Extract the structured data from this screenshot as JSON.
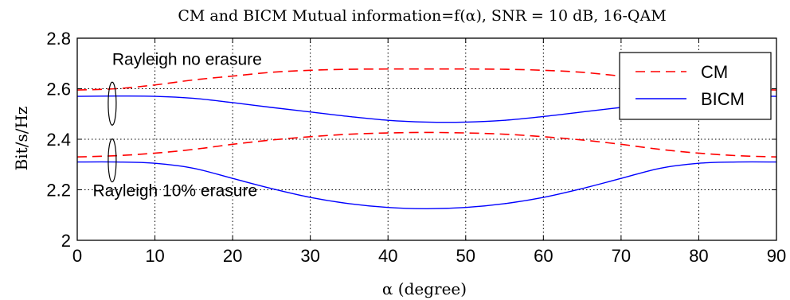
{
  "chart_data": {
    "type": "line",
    "title": "CM and BICM Mutual information=f(α), SNR = 10 dB, 16-QAM",
    "xlabel": "α (degree)",
    "ylabel": "Bit/s/Hz",
    "xlim": [
      0,
      90
    ],
    "ylim": [
      2,
      2.8
    ],
    "xticks": [
      0,
      10,
      20,
      30,
      40,
      50,
      60,
      70,
      80,
      90
    ],
    "yticks": [
      2,
      2.2,
      2.4,
      2.6,
      2.8
    ],
    "ytick_labels": [
      "2",
      "2.2",
      "2.4",
      "2.6",
      "2.8"
    ],
    "grid": true,
    "legend_position": "top-right",
    "legend": [
      {
        "name": "CM",
        "style": "dashed",
        "color": "#ff0000"
      },
      {
        "name": "BICM",
        "style": "solid",
        "color": "#0000ff"
      }
    ],
    "x": [
      0,
      5,
      10,
      15,
      20,
      25,
      30,
      35,
      40,
      45,
      50,
      55,
      60,
      65,
      70,
      75,
      80,
      85,
      90
    ],
    "series": [
      {
        "name": "CM",
        "group": "Rayleigh no erasure",
        "color": "#ff0000",
        "dash": true,
        "values": [
          2.595,
          2.6,
          2.615,
          2.635,
          2.65,
          2.665,
          2.673,
          2.677,
          2.678,
          2.678,
          2.678,
          2.677,
          2.673,
          2.665,
          2.65,
          2.635,
          2.615,
          2.6,
          2.595
        ]
      },
      {
        "name": "BICM",
        "group": "Rayleigh no erasure",
        "color": "#0000ff",
        "dash": false,
        "values": [
          2.57,
          2.571,
          2.57,
          2.562,
          2.545,
          2.526,
          2.508,
          2.49,
          2.475,
          2.468,
          2.468,
          2.475,
          2.49,
          2.508,
          2.526,
          2.545,
          2.562,
          2.57,
          2.57
        ]
      },
      {
        "name": "CM",
        "group": "Rayleigh 10% erasure",
        "color": "#ff0000",
        "dash": true,
        "values": [
          2.33,
          2.335,
          2.345,
          2.36,
          2.38,
          2.397,
          2.41,
          2.42,
          2.425,
          2.427,
          2.425,
          2.42,
          2.41,
          2.397,
          2.38,
          2.36,
          2.345,
          2.335,
          2.33
        ]
      },
      {
        "name": "BICM",
        "group": "Rayleigh 10% erasure",
        "color": "#0000ff",
        "dash": false,
        "values": [
          2.31,
          2.31,
          2.305,
          2.285,
          2.245,
          2.205,
          2.17,
          2.145,
          2.13,
          2.125,
          2.13,
          2.145,
          2.17,
          2.205,
          2.245,
          2.285,
          2.305,
          2.31,
          2.31
        ]
      }
    ],
    "annotations": [
      {
        "text": "Rayleigh no erasure",
        "x": 4.5,
        "y": 2.72
      },
      {
        "text": "Rayleigh 10% erasure",
        "x": 2,
        "y": 2.2
      }
    ]
  }
}
